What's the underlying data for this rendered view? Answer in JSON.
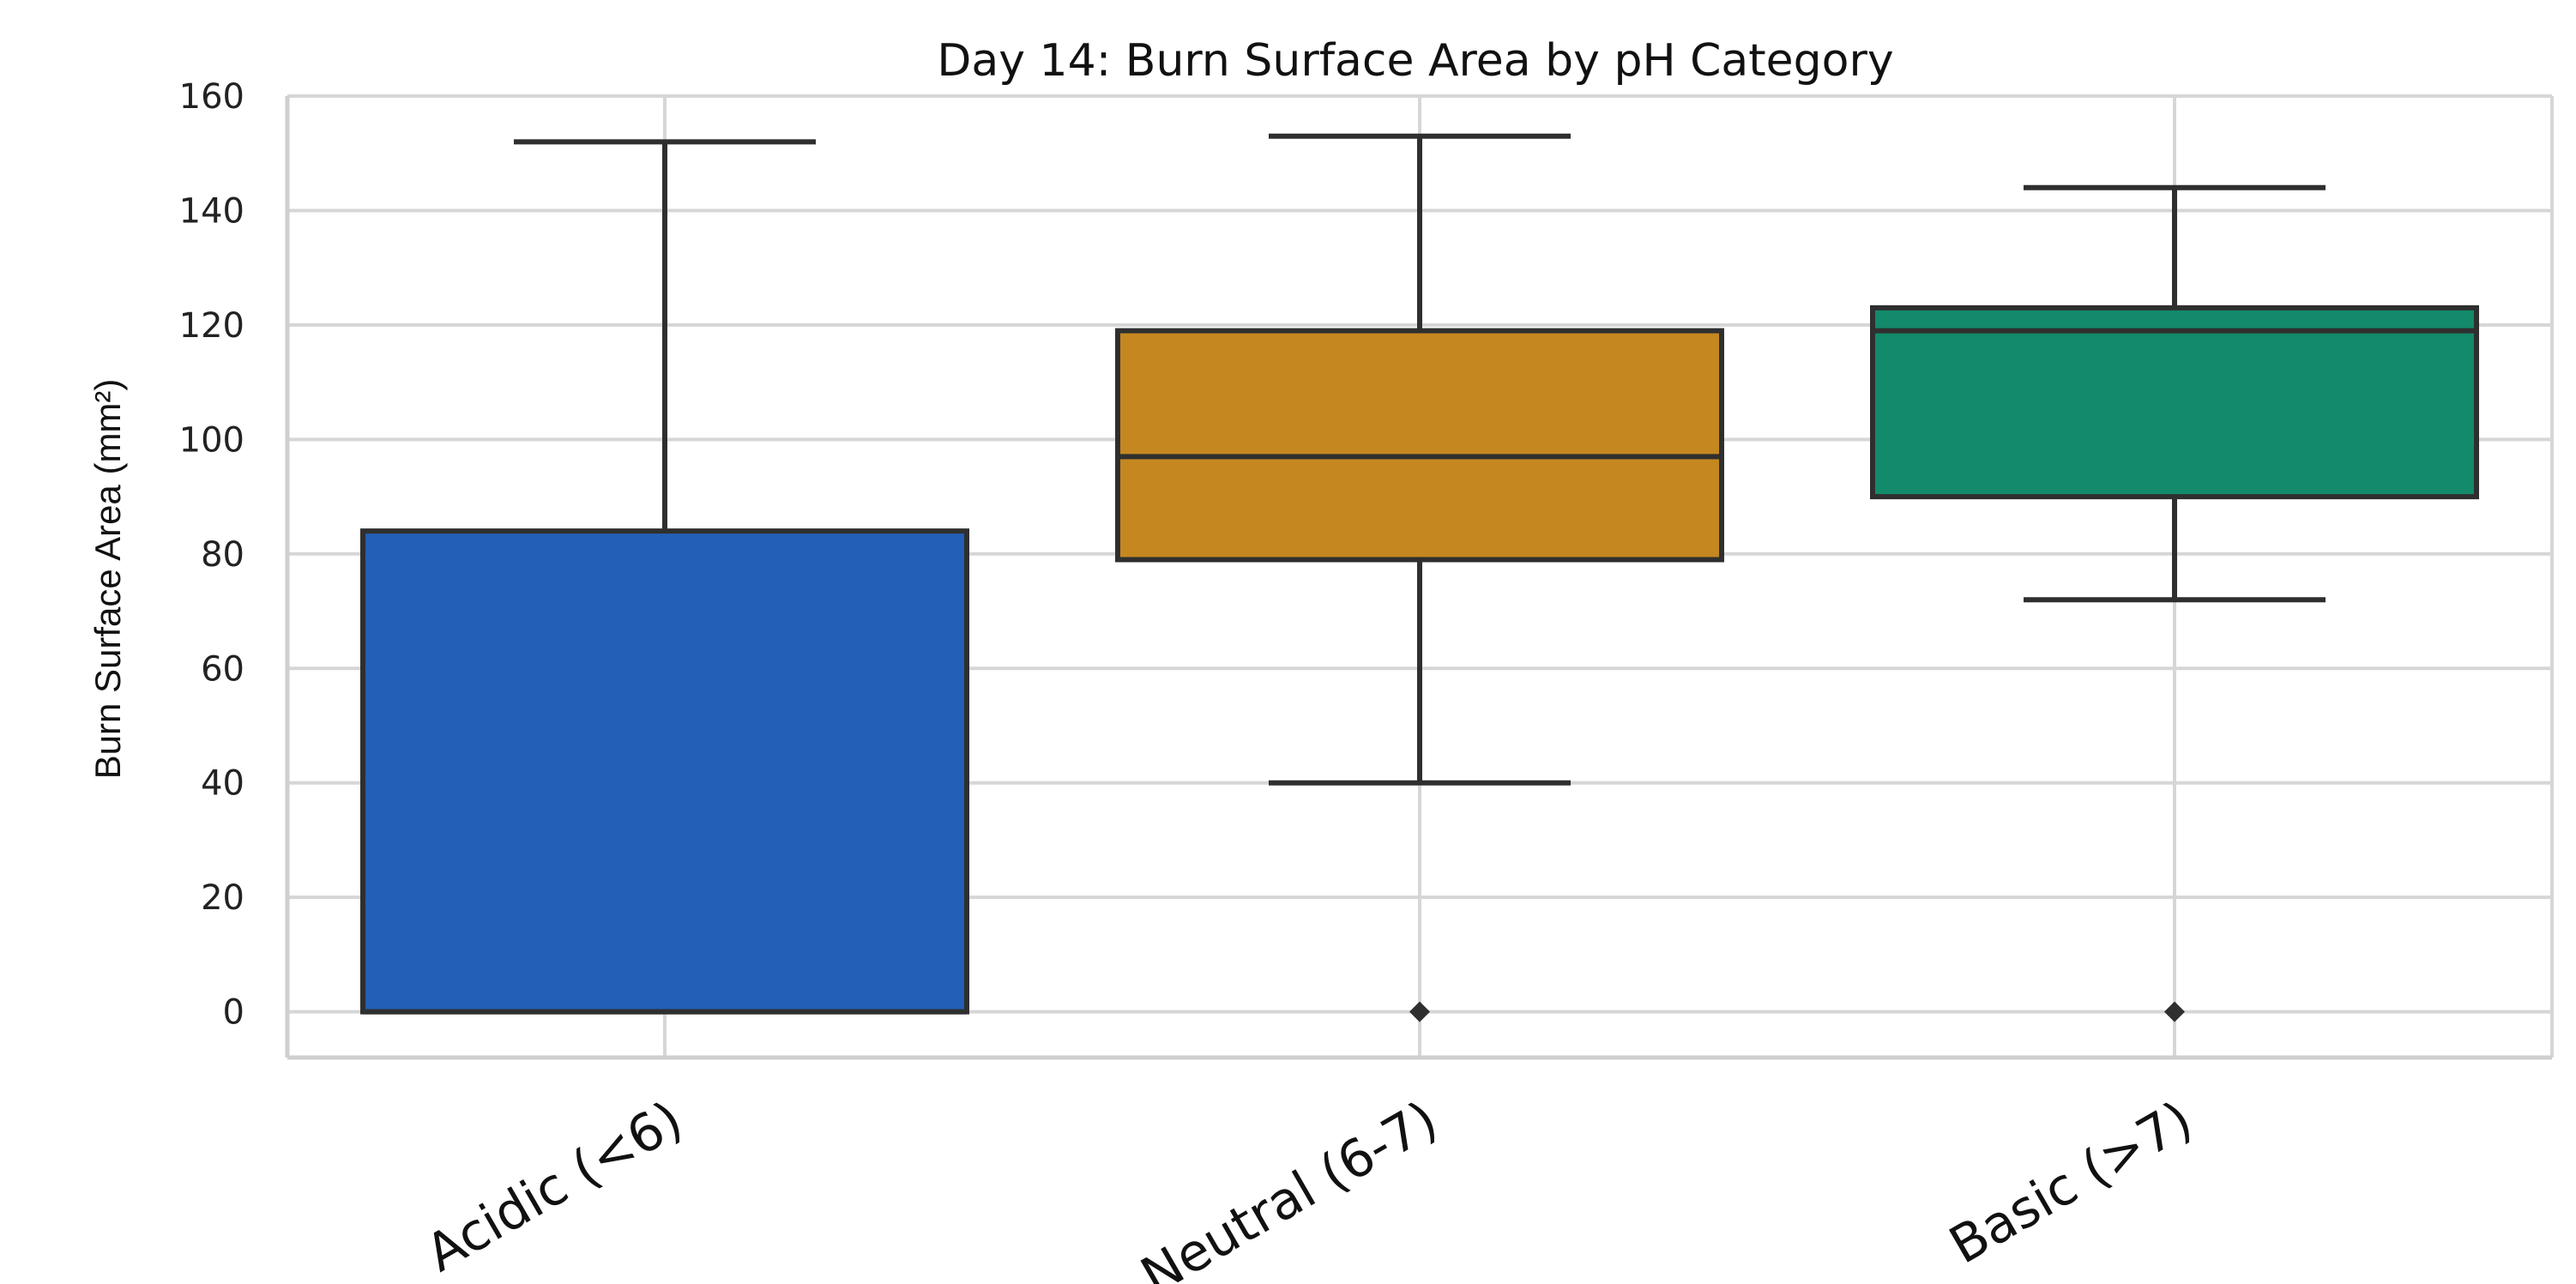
{
  "chart_data": {
    "type": "box",
    "title": "Day 14: Burn Surface Area by pH Category",
    "xlabel": "",
    "ylabel": "Burn Surface Area (mm²)",
    "ylim": [
      -8,
      160
    ],
    "yticks": [
      0,
      20,
      40,
      60,
      80,
      100,
      120,
      140,
      160
    ],
    "grid": true,
    "categories": [
      "Acidic (<6)",
      "Neutral (6-7)",
      "Basic (>7)"
    ],
    "boxes": [
      {
        "category": "Acidic (<6)",
        "color": "#235fb6",
        "whisker_low": 0,
        "q1": 0,
        "median": 0,
        "q3": 84,
        "whisker_high": 152,
        "outliers": []
      },
      {
        "category": "Neutral (6-7)",
        "color": "#c58720",
        "whisker_low": 40,
        "q1": 79,
        "median": 97,
        "q3": 119,
        "whisker_high": 153,
        "outliers": [
          0
        ]
      },
      {
        "category": "Basic (>7)",
        "color": "#138a6a",
        "whisker_low": 72,
        "q1": 90,
        "median": 119,
        "q3": 123,
        "whisker_high": 144,
        "outliers": [
          0
        ]
      }
    ]
  }
}
